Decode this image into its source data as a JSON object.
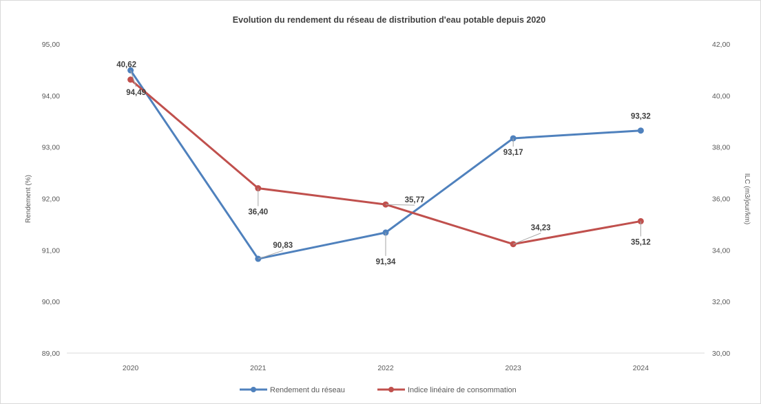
{
  "chart_data": {
    "type": "line",
    "title": "Evolution du rendement du réseau de distribution d'eau potable depuis 2020",
    "categories": [
      "2020",
      "2021",
      "2022",
      "2023",
      "2024"
    ],
    "y_left": {
      "label": "Rendement (%)",
      "range": [
        89,
        95
      ],
      "ticks": [
        "89,00",
        "90,00",
        "91,00",
        "92,00",
        "93,00",
        "94,00",
        "95,00"
      ]
    },
    "y_right": {
      "label": "ILC (m3/jour/km)",
      "range": [
        30,
        42
      ],
      "ticks": [
        "30,00",
        "32,00",
        "34,00",
        "36,00",
        "38,00",
        "40,00",
        "42,00"
      ]
    },
    "series": [
      {
        "name": "Rendement du réseau",
        "axis": "left",
        "color": "#4f81bd",
        "values": [
          94.49,
          90.83,
          91.34,
          93.17,
          93.32
        ],
        "labels": [
          "94,49",
          "90,83",
          "91,34",
          "93,17",
          "93,32"
        ]
      },
      {
        "name": "Indice linéaire de consommation",
        "axis": "right",
        "color": "#c0504d",
        "values": [
          40.62,
          36.4,
          35.77,
          34.23,
          35.12
        ],
        "labels": [
          "40,62",
          "36,40",
          "35,77",
          "34,23",
          "35,12"
        ]
      }
    ],
    "grid": false,
    "legend_position": "bottom"
  }
}
